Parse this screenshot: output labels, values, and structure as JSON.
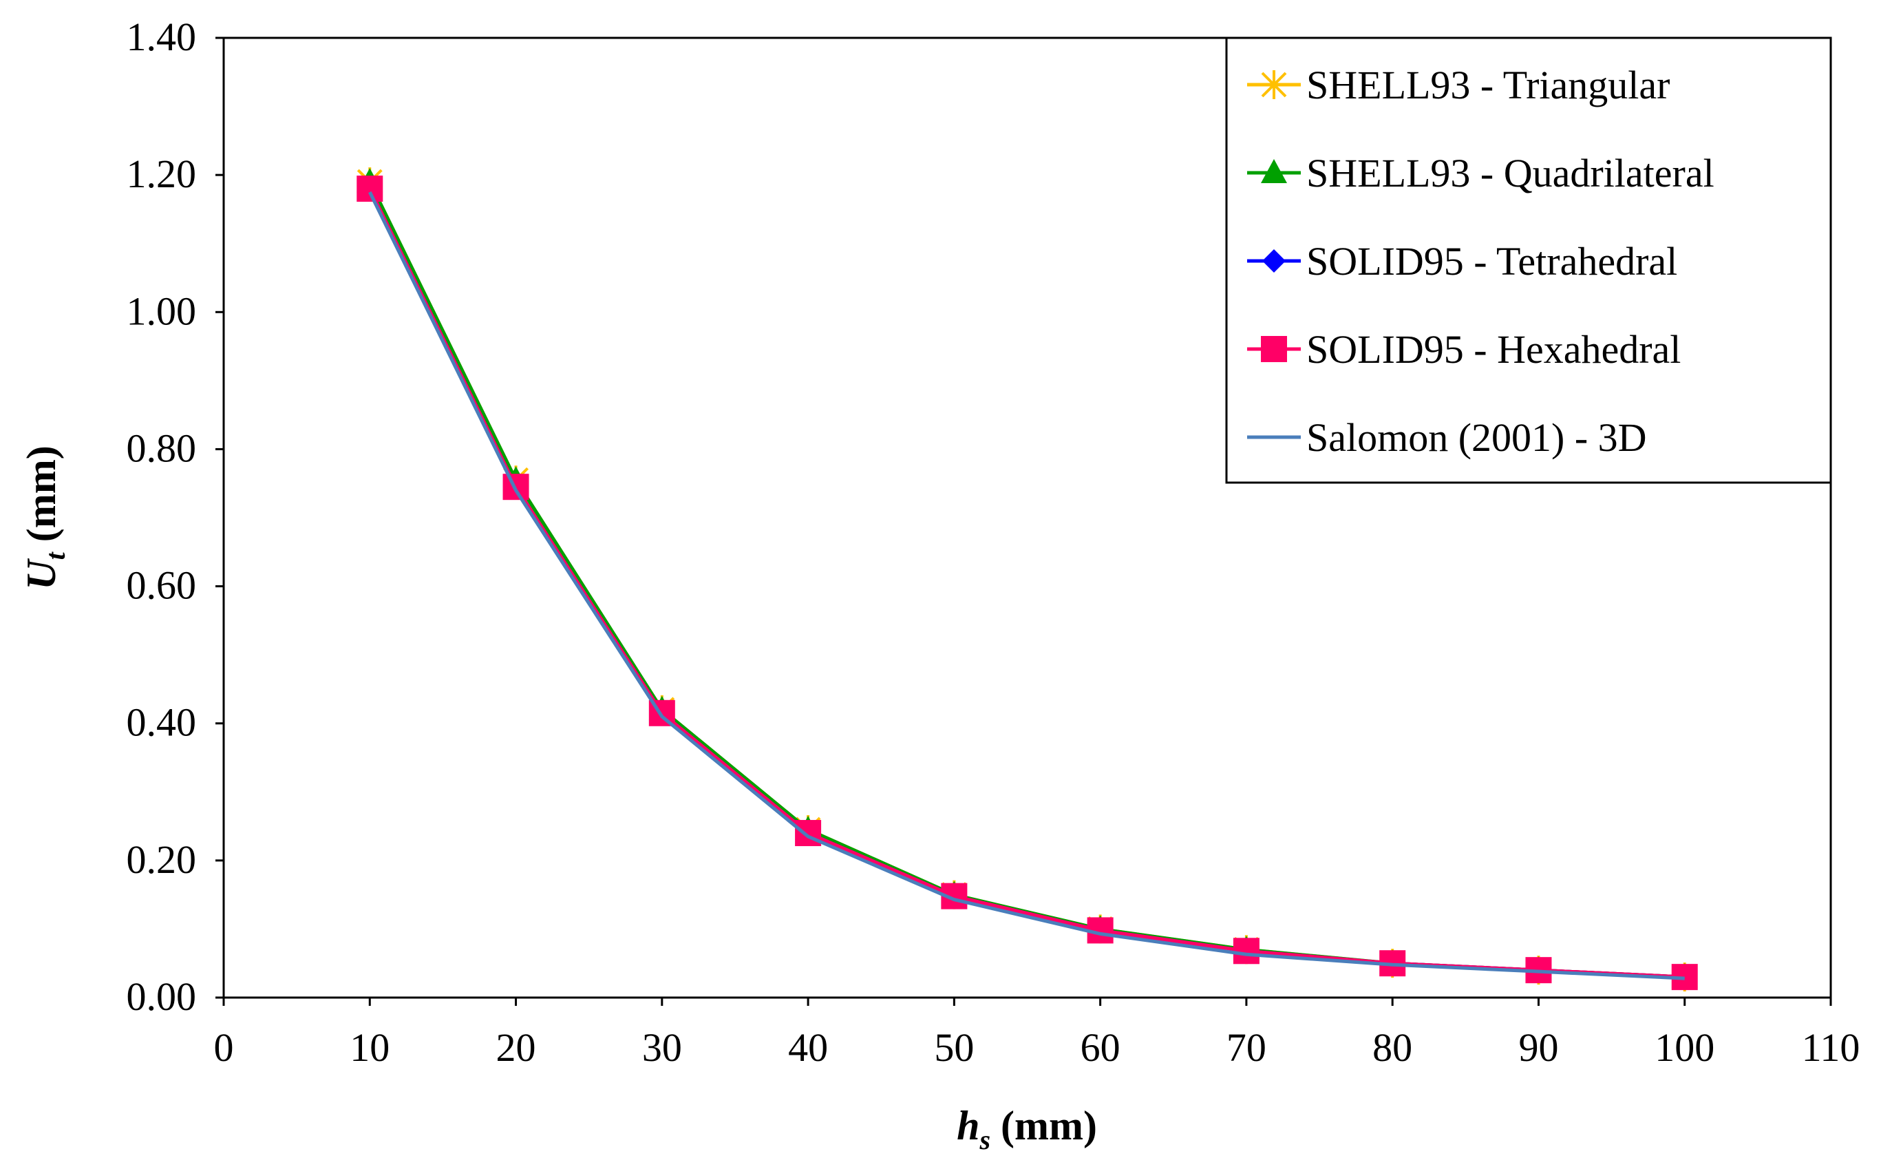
{
  "chart_data": {
    "type": "line",
    "title": "",
    "x": [
      10,
      20,
      30,
      40,
      50,
      60,
      70,
      80,
      90,
      100
    ],
    "xlim": [
      0,
      110
    ],
    "ylim": [
      0,
      1.4
    ],
    "xticks": [
      "0",
      "10",
      "20",
      "30",
      "40",
      "50",
      "60",
      "70",
      "80",
      "90",
      "100",
      "110"
    ],
    "yticks": [
      "0.00",
      "0.20",
      "0.40",
      "0.60",
      "0.80",
      "1.00",
      "1.20",
      "1.40"
    ],
    "xlabel": {
      "main": "h",
      "sub": "s",
      "unit": " (mm)"
    },
    "ylabel": {
      "main": "U",
      "sub": "t",
      "unit": " (mm)"
    },
    "grid": false,
    "legend_position": "top-right",
    "series": [
      {
        "name": "SHELL93 - Triangular",
        "marker": "asterisk",
        "color": "#FFC000",
        "values": [
          1.19,
          0.755,
          0.42,
          0.245,
          0.15,
          0.1,
          0.07,
          0.05,
          0.04,
          0.03
        ]
      },
      {
        "name": "SHELL93 - Quadrilateral",
        "marker": "triangle",
        "color": "#00A000",
        "values": [
          1.19,
          0.755,
          0.42,
          0.245,
          0.15,
          0.1,
          0.07,
          0.05,
          0.04,
          0.03
        ]
      },
      {
        "name": "SOLID95 - Tetrahedral",
        "marker": "diamond",
        "color": "#0000FF",
        "values": [
          1.18,
          0.745,
          0.415,
          0.24,
          0.148,
          0.098,
          0.068,
          0.05,
          0.04,
          0.03
        ]
      },
      {
        "name": "SOLID95 - Hexahedral",
        "marker": "square",
        "color": "#FF0066",
        "values": [
          1.18,
          0.745,
          0.415,
          0.24,
          0.148,
          0.098,
          0.068,
          0.05,
          0.04,
          0.03
        ]
      },
      {
        "name": "Salomon (2001) - 3D",
        "marker": "none",
        "color": "#4A7EBB",
        "values": [
          1.175,
          0.74,
          0.41,
          0.235,
          0.143,
          0.093,
          0.063,
          0.048,
          0.038,
          0.028
        ]
      }
    ]
  }
}
